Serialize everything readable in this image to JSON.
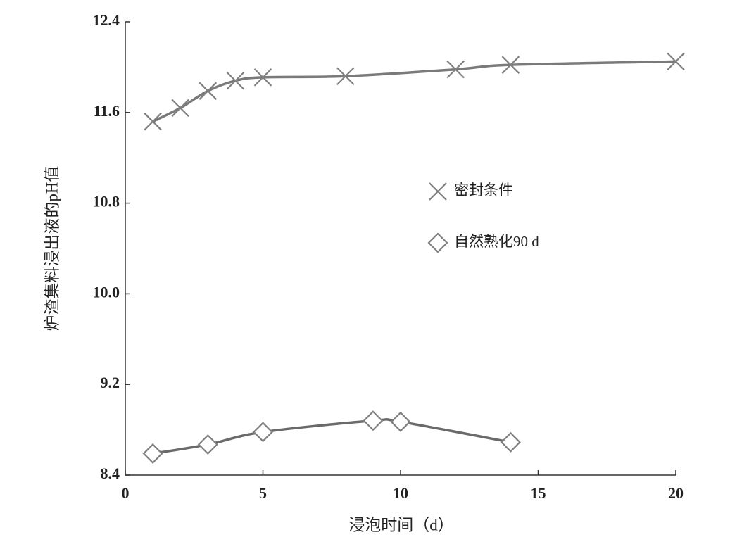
{
  "chart_data": {
    "type": "scatter",
    "x_label": "浸泡时间（d）",
    "y_label": "炉渣集料浸出液的pH值",
    "xlim": [
      0,
      20
    ],
    "xticks": [
      0,
      5,
      10,
      15,
      20
    ],
    "ylim": [
      8.4,
      12.4
    ],
    "yticks": [
      8.4,
      9.2,
      {
        "value": 10,
        "label": "10.0"
      },
      10.8,
      11.6,
      12.4
    ],
    "legend": "center-right",
    "series": [
      {
        "name": "密封条件",
        "color": "#808080",
        "line_color": "#7a7a7a",
        "marker": "x",
        "x": [
          1,
          2,
          3,
          4,
          5,
          8,
          12,
          14,
          20
        ],
        "values": [
          11.52,
          11.64,
          11.79,
          11.88,
          11.91,
          11.92,
          11.98,
          12.02,
          12.05
        ]
      },
      {
        "name": "自然熟化90 d",
        "color": "#808080",
        "line_color": "#6a6a6a",
        "marker": "diamond",
        "x": [
          1,
          3,
          5,
          9,
          10,
          14
        ],
        "values": [
          8.59,
          8.67,
          8.78,
          8.88,
          8.87,
          8.69
        ]
      }
    ]
  }
}
